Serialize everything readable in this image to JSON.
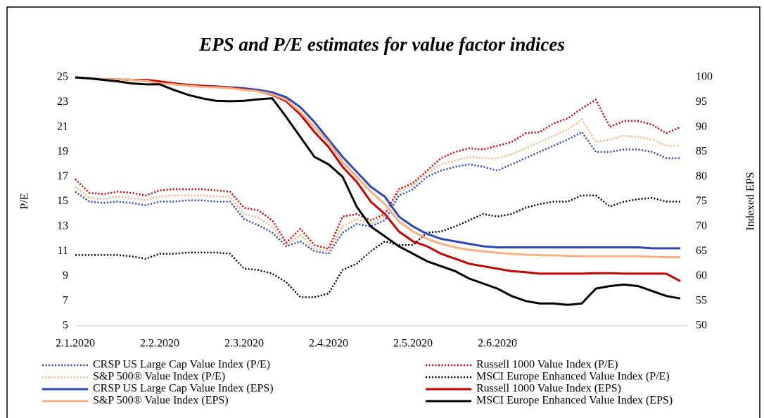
{
  "chart_data": {
    "type": "line",
    "title": "EPS and P/E estimates for value factor indices",
    "y_label": "P/E",
    "y2_label": "Indexed EPS",
    "categories": [
      "2.1.2020",
      null,
      null,
      null,
      null,
      null,
      "2.2.2020",
      null,
      null,
      null,
      null,
      null,
      "2.3.2020",
      null,
      null,
      null,
      null,
      null,
      "2.4.2020",
      null,
      null,
      null,
      null,
      null,
      "2.5.2020",
      null,
      null,
      null,
      null,
      null,
      "2.6.2020",
      null,
      null,
      null,
      null,
      null,
      null,
      null,
      null,
      null,
      null,
      null,
      null,
      null
    ],
    "ylim": [
      5,
      25
    ],
    "yticks": [
      5,
      7,
      9,
      11,
      13,
      15,
      17,
      19,
      21,
      23,
      25
    ],
    "y2lim": [
      50,
      100
    ],
    "y2ticks": [
      50,
      55,
      60,
      65,
      70,
      75,
      80,
      85,
      90,
      95,
      100
    ],
    "series": [
      {
        "name": "CRSP US Large Cap Value Index (P/E)",
        "color": "#2e45b8",
        "style": "dotted",
        "values": [
          15.8,
          15.0,
          14.9,
          15.0,
          14.9,
          14.7,
          15.0,
          15.0,
          15.1,
          15.1,
          15.0,
          15.0,
          13.6,
          13.1,
          12.5,
          11.4,
          11.8,
          11.0,
          10.8,
          12.5,
          13.2,
          13.0,
          13.5,
          15.5,
          16.0,
          17.0,
          17.5,
          17.8,
          18.0,
          17.8,
          17.5,
          18.0,
          18.5,
          19.0,
          19.5,
          20.0,
          20.6,
          19.0,
          19.0,
          19.2,
          19.2,
          19.0,
          18.5,
          18.5
        ]
      },
      {
        "name": "Russell 1000 Value Index (P/E)",
        "color": "#c00000",
        "style": "dotted",
        "values": [
          16.8,
          15.7,
          15.6,
          15.8,
          15.7,
          15.5,
          15.9,
          16.0,
          16.0,
          16.0,
          15.9,
          15.8,
          14.5,
          14.3,
          13.5,
          11.7,
          12.8,
          11.5,
          11.2,
          13.8,
          14.0,
          13.5,
          14.0,
          16.0,
          16.5,
          17.5,
          18.5,
          19.0,
          19.3,
          19.2,
          19.5,
          19.8,
          20.5,
          20.6,
          21.3,
          21.7,
          22.5,
          23.2,
          21.0,
          21.5,
          21.5,
          21.2,
          20.5,
          21.0
        ]
      },
      {
        "name": "S&P 500® Value Index (P/E)",
        "color": "#f4b183",
        "style": "dotted",
        "values": [
          16.2,
          15.3,
          15.2,
          15.4,
          15.3,
          15.1,
          15.4,
          15.5,
          15.5,
          15.5,
          15.4,
          15.4,
          14.0,
          13.7,
          13.0,
          11.5,
          12.3,
          11.2,
          11.0,
          13.0,
          13.6,
          13.2,
          13.8,
          15.8,
          16.3,
          17.3,
          18.0,
          18.3,
          18.6,
          18.5,
          18.5,
          18.8,
          19.3,
          19.8,
          20.3,
          20.8,
          21.6,
          19.8,
          20.0,
          20.3,
          20.2,
          20.0,
          19.5,
          19.5
        ]
      },
      {
        "name": "MSCI Europe Enhanced Value Index (P/E)",
        "color": "#000000",
        "style": "dotted",
        "values": [
          10.7,
          10.7,
          10.7,
          10.7,
          10.6,
          10.4,
          10.8,
          10.8,
          10.9,
          10.9,
          10.9,
          10.8,
          9.6,
          9.5,
          9.2,
          8.5,
          7.3,
          7.3,
          7.6,
          9.5,
          10.0,
          11.0,
          11.8,
          11.5,
          11.5,
          12.5,
          12.6,
          13.0,
          13.5,
          14.0,
          13.8,
          14.0,
          14.5,
          14.8,
          15.0,
          15.0,
          15.5,
          15.5,
          14.6,
          15.0,
          15.2,
          15.3,
          15.0,
          15.0
        ]
      },
      {
        "name": "CRSP US Large Cap Value Index (EPS)",
        "color": "#2e45b8",
        "style": "solid",
        "axis": "y2",
        "values": [
          100,
          99.8,
          99.6,
          99.6,
          99.5,
          99.3,
          99,
          98.8,
          98.5,
          98.3,
          98.2,
          98,
          97.8,
          97.5,
          97,
          96,
          94,
          91,
          87.5,
          84,
          81,
          78,
          76,
          72,
          70,
          68.5,
          67.5,
          67,
          66.5,
          66,
          65.8,
          65.8,
          65.8,
          65.8,
          65.8,
          65.8,
          65.8,
          65.8,
          65.8,
          65.8,
          65.8,
          65.6,
          65.6,
          65.6
        ]
      },
      {
        "name": "Russell 1000 Value Index (EPS)",
        "color": "#c00000",
        "style": "solid",
        "axis": "y2",
        "values": [
          100,
          99.8,
          99.6,
          99.6,
          99.5,
          99.5,
          99.2,
          98.8,
          98.5,
          98.3,
          98.1,
          97.9,
          97.6,
          97.2,
          96.5,
          95.2,
          92.5,
          89,
          86,
          82,
          79,
          75,
          72.5,
          69,
          67,
          66,
          64.5,
          63.5,
          62.5,
          62,
          61.5,
          61,
          60.8,
          60.5,
          60.5,
          60.5,
          60.5,
          60.6,
          60.6,
          60.5,
          60.5,
          60.5,
          60.5,
          59
        ]
      },
      {
        "name": "S&P 500® Value Index (EPS)",
        "color": "#f4b183",
        "style": "solid",
        "axis": "y2",
        "values": [
          100,
          99.8,
          99.6,
          99.6,
          99.5,
          99.3,
          98.8,
          98.6,
          98.3,
          98.1,
          98,
          97.8,
          97.5,
          97.2,
          96.6,
          95.5,
          93,
          90,
          87,
          83,
          80,
          77,
          74.5,
          71,
          69,
          67.5,
          66.5,
          65.8,
          65.3,
          65,
          64.7,
          64.5,
          64.3,
          64.2,
          64.2,
          64.1,
          64,
          64,
          64,
          64,
          64,
          63.9,
          63.8,
          63.8
        ]
      },
      {
        "name": "MSCI Europe Enhanced Value Index (EPS)",
        "color": "#000000",
        "style": "solid",
        "axis": "y2",
        "values": [
          100,
          99.8,
          99.5,
          99.2,
          98.8,
          98.6,
          98.6,
          97.5,
          96.5,
          95.8,
          95.3,
          95.2,
          95.3,
          95.6,
          95.8,
          92,
          88,
          84,
          82.5,
          80,
          74,
          70,
          68,
          66,
          64.5,
          63,
          62,
          61,
          59.5,
          58.5,
          57.5,
          56,
          55,
          54.5,
          54.5,
          54.2,
          54.5,
          57.5,
          58,
          58.3,
          58,
          57,
          56,
          55.5
        ]
      }
    ]
  }
}
